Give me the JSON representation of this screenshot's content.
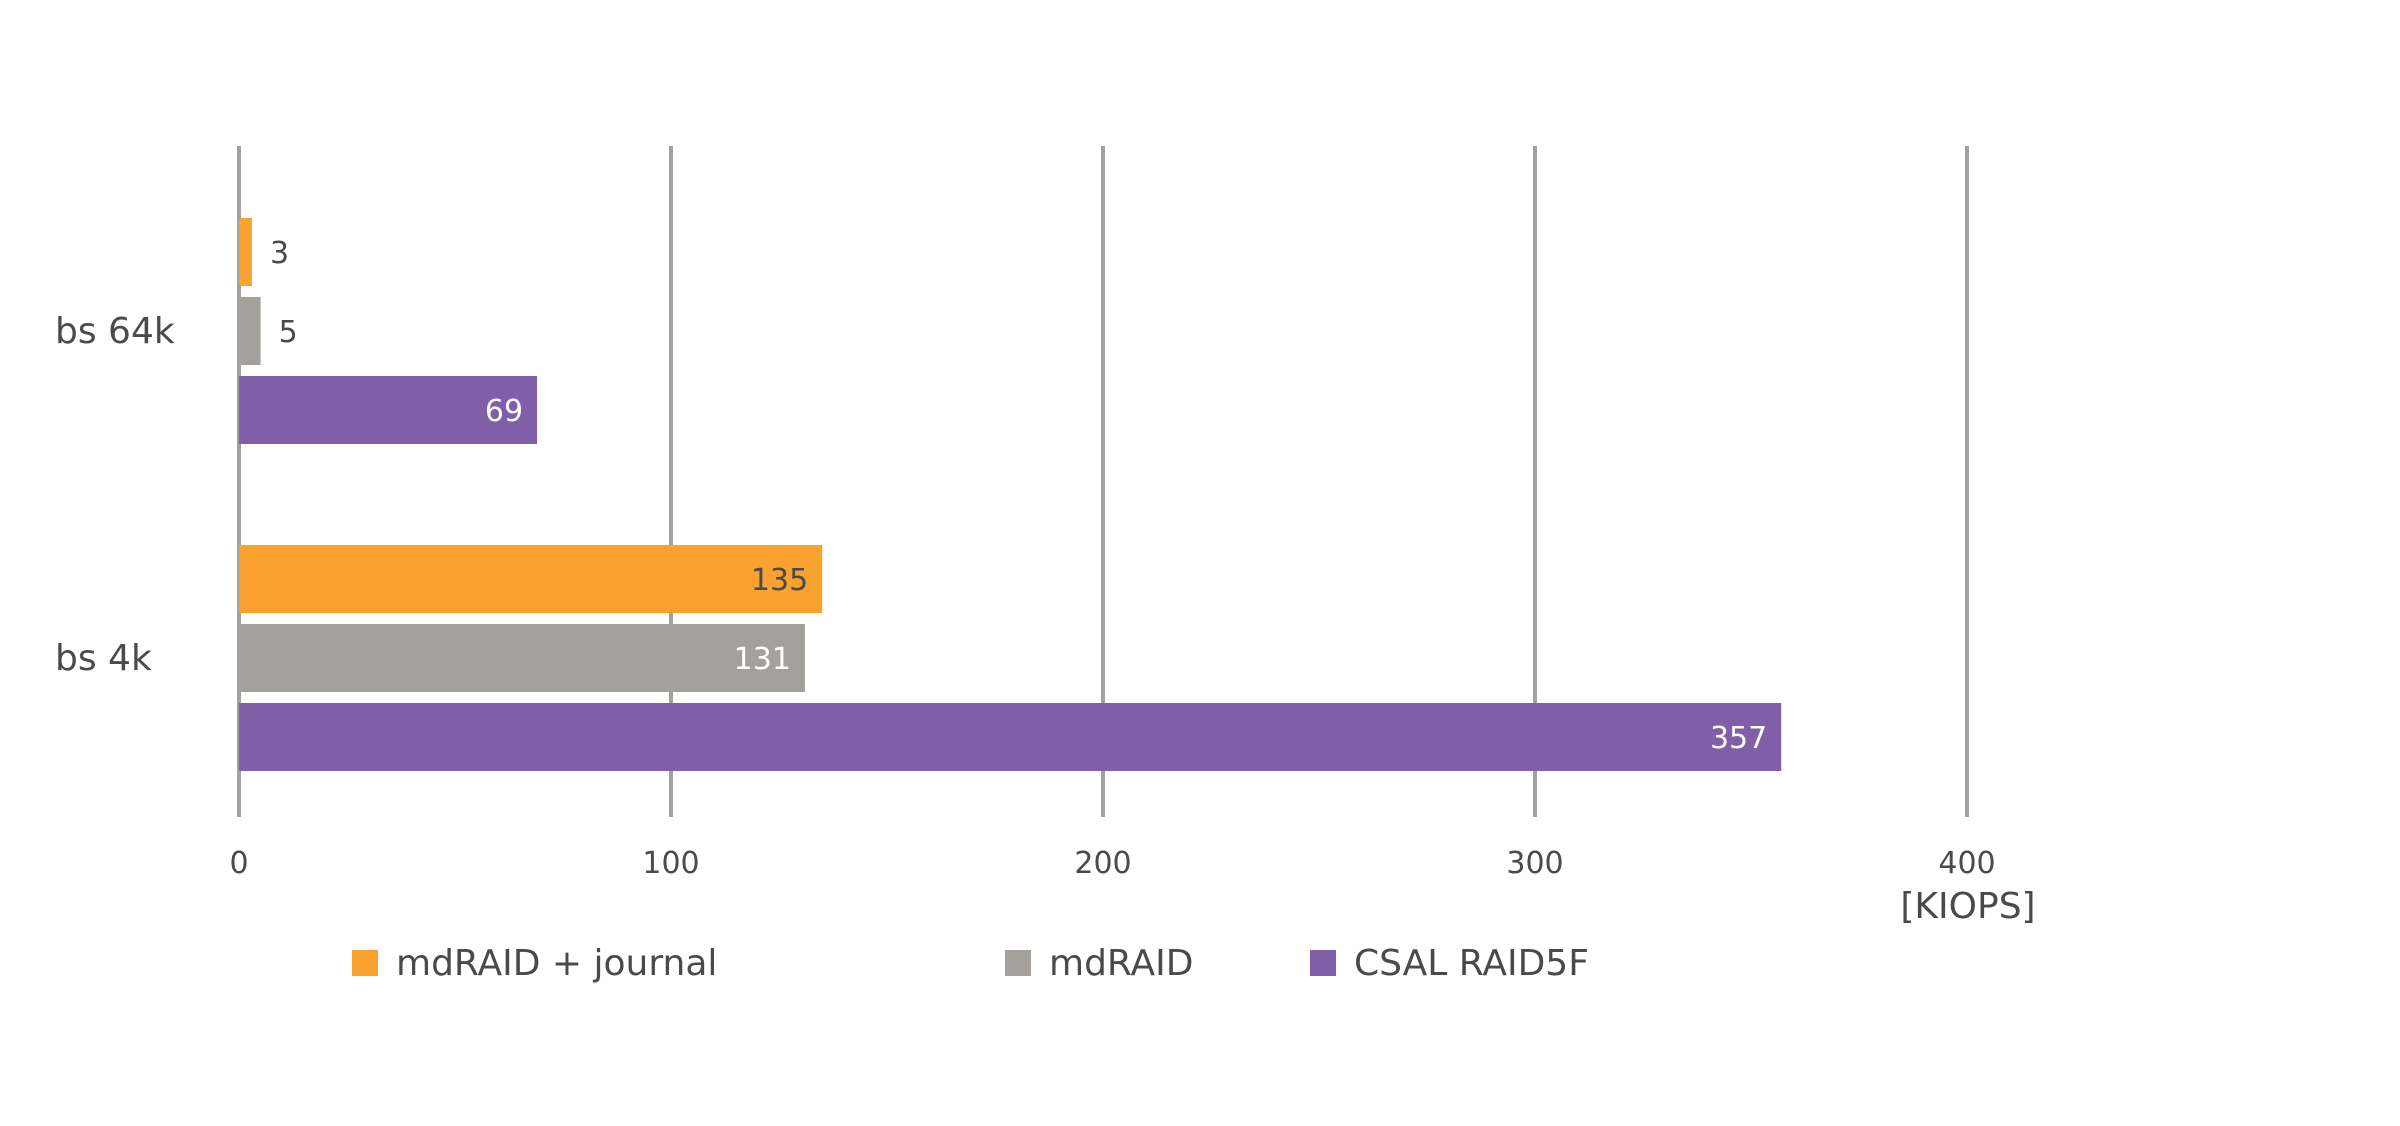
{
  "chart_data": {
    "type": "bar",
    "orientation": "horizontal",
    "title": "",
    "xlabel": "[KIOPS]",
    "ylabel": "",
    "xlim": [
      0,
      400
    ],
    "xticks": [
      0,
      100,
      200,
      300,
      400
    ],
    "xtick_labels": [
      "0",
      "100",
      "200",
      "300",
      "400"
    ],
    "grid": "vertical",
    "legend_position": "bottom",
    "categories": [
      "bs 64k",
      "bs 4k"
    ],
    "series": [
      {
        "name": "mdRAID + journal",
        "color": "#F9A230",
        "values": [
          3,
          135
        ]
      },
      {
        "name": "mdRAID",
        "color": "#A4A19C",
        "values": [
          5,
          131
        ]
      },
      {
        "name": "CSAL RAID5F",
        "color": "#805EA8",
        "values": [
          69,
          357
        ]
      }
    ],
    "data_labels": [
      [
        "3",
        "135"
      ],
      [
        "5",
        "131"
      ],
      [
        "69",
        "357"
      ]
    ]
  }
}
